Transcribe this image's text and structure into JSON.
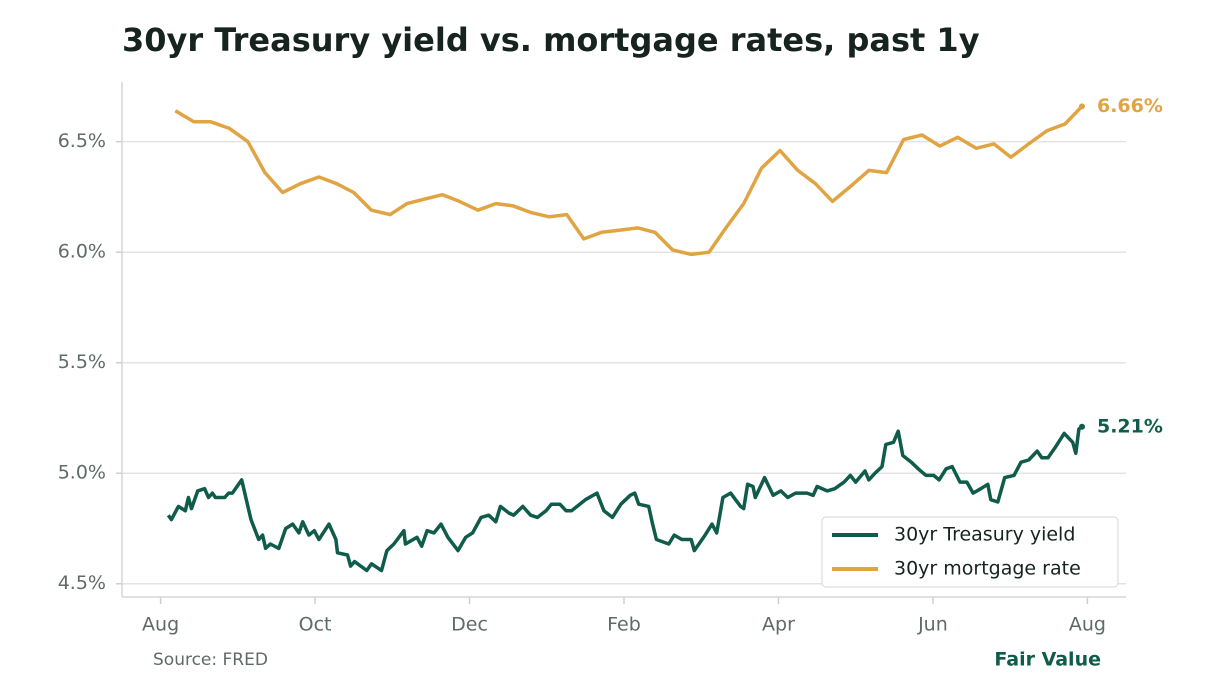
{
  "chart_data": {
    "type": "line",
    "title": "30yr Treasury yield vs. mortgage rates, past 1y",
    "source": "Source: FRED",
    "brand": "Fair Value",
    "xlim": [
      -0.5,
      12.5
    ],
    "xticks": [
      {
        "value": 0,
        "label": "Aug"
      },
      {
        "value": 2,
        "label": "Oct"
      },
      {
        "value": 4,
        "label": "Dec"
      },
      {
        "value": 6,
        "label": "Feb"
      },
      {
        "value": 8,
        "label": "Apr"
      },
      {
        "value": 10,
        "label": "Jun"
      },
      {
        "value": 12,
        "label": "Aug"
      }
    ],
    "ylim": [
      4.44,
      6.77
    ],
    "yticks": [
      {
        "value": 4.5,
        "label": "4.5%"
      },
      {
        "value": 5.0,
        "label": "5.0%"
      },
      {
        "value": 5.5,
        "label": "5.5%"
      },
      {
        "value": 6.0,
        "label": "6.0%"
      },
      {
        "value": 6.5,
        "label": "6.5%"
      }
    ],
    "grid": true,
    "legend": "lower right",
    "series": [
      {
        "name": "30yr Treasury yield",
        "color": "#0f5c4a",
        "end_label": "5.21%",
        "x": [
          0.1,
          0.14,
          0.23,
          0.32,
          0.36,
          0.4,
          0.48,
          0.57,
          0.62,
          0.67,
          0.71,
          0.83,
          0.88,
          0.93,
          1.05,
          1.11,
          1.17,
          1.27,
          1.32,
          1.36,
          1.42,
          1.53,
          1.62,
          1.71,
          1.79,
          1.84,
          1.92,
          1.99,
          2.05,
          2.18,
          2.27,
          2.29,
          2.42,
          2.46,
          2.51,
          2.67,
          2.73,
          2.86,
          2.93,
          3.02,
          3.15,
          3.17,
          3.32,
          3.38,
          3.45,
          3.54,
          3.63,
          3.72,
          3.85,
          3.95,
          4.04,
          4.15,
          4.25,
          4.34,
          4.4,
          4.51,
          4.57,
          4.69,
          4.79,
          4.88,
          4.99,
          5.06,
          5.17,
          5.25,
          5.32,
          5.5,
          5.65,
          5.74,
          5.85,
          5.96,
          6.08,
          6.14,
          6.19,
          6.32,
          6.37,
          6.42,
          6.58,
          6.65,
          6.75,
          6.87,
          6.91,
          7.05,
          7.14,
          7.2,
          7.28,
          7.38,
          7.51,
          7.55,
          7.6,
          7.67,
          7.7,
          7.82,
          7.93,
          8.03,
          8.12,
          8.22,
          8.37,
          8.45,
          8.5,
          8.63,
          8.73,
          8.85,
          8.93,
          9.0,
          9.12,
          9.17,
          9.25,
          9.34,
          9.39,
          9.49,
          9.55,
          9.61,
          9.72,
          9.81,
          9.91,
          10.01,
          10.08,
          10.17,
          10.25,
          10.35,
          10.44,
          10.52,
          10.62,
          10.71,
          10.75,
          10.84,
          10.93,
          11.05,
          11.14,
          11.24,
          11.35,
          11.41,
          11.49,
          11.59,
          11.7,
          11.81,
          11.85,
          11.89,
          11.93
        ],
        "values": [
          4.81,
          4.79,
          4.85,
          4.83,
          4.89,
          4.84,
          4.92,
          4.93,
          4.89,
          4.91,
          4.89,
          4.89,
          4.91,
          4.91,
          4.97,
          4.88,
          4.79,
          4.7,
          4.72,
          4.66,
          4.68,
          4.66,
          4.75,
          4.77,
          4.73,
          4.78,
          4.72,
          4.74,
          4.7,
          4.77,
          4.7,
          4.64,
          4.63,
          4.58,
          4.6,
          4.56,
          4.59,
          4.56,
          4.65,
          4.68,
          4.74,
          4.68,
          4.71,
          4.67,
          4.74,
          4.73,
          4.77,
          4.71,
          4.65,
          4.71,
          4.73,
          4.8,
          4.81,
          4.78,
          4.85,
          4.82,
          4.81,
          4.85,
          4.81,
          4.8,
          4.83,
          4.86,
          4.86,
          4.83,
          4.83,
          4.88,
          4.91,
          4.83,
          4.8,
          4.86,
          4.9,
          4.91,
          4.86,
          4.85,
          4.77,
          4.7,
          4.68,
          4.72,
          4.7,
          4.7,
          4.65,
          4.72,
          4.77,
          4.73,
          4.89,
          4.91,
          4.85,
          4.84,
          4.95,
          4.94,
          4.89,
          4.98,
          4.9,
          4.92,
          4.89,
          4.91,
          4.91,
          4.9,
          4.94,
          4.92,
          4.93,
          4.96,
          4.99,
          4.96,
          5.01,
          4.97,
          5.0,
          5.03,
          5.13,
          5.14,
          5.19,
          5.08,
          5.05,
          5.02,
          4.99,
          4.99,
          4.97,
          5.02,
          5.03,
          4.96,
          4.96,
          4.91,
          4.93,
          4.95,
          4.88,
          4.87,
          4.98,
          4.99,
          5.05,
          5.06,
          5.1,
          5.07,
          5.07,
          5.12,
          5.18,
          5.14,
          5.09,
          5.2,
          5.21
        ]
      },
      {
        "name": "30yr mortgage rate",
        "color": "#e0a443",
        "end_label": "6.66%",
        "x": [
          0.19,
          0.43,
          0.65,
          0.89,
          1.13,
          1.35,
          1.58,
          1.81,
          2.05,
          2.28,
          2.5,
          2.73,
          2.97,
          3.19,
          3.42,
          3.65,
          3.87,
          4.11,
          4.34,
          4.56,
          4.79,
          5.03,
          5.26,
          5.48,
          5.71,
          5.95,
          6.18,
          6.4,
          6.63,
          6.87,
          7.1,
          7.32,
          7.55,
          7.78,
          8.02,
          8.25,
          8.48,
          8.7,
          8.94,
          9.17,
          9.4,
          9.62,
          9.86,
          10.09,
          10.32,
          10.56,
          10.79,
          11.01,
          11.24,
          11.48,
          11.71,
          11.93
        ],
        "values": [
          6.64,
          6.59,
          6.59,
          6.56,
          6.5,
          6.36,
          6.27,
          6.31,
          6.34,
          6.31,
          6.27,
          6.19,
          6.17,
          6.22,
          6.24,
          6.26,
          6.23,
          6.19,
          6.22,
          6.21,
          6.18,
          6.16,
          6.17,
          6.06,
          6.09,
          6.1,
          6.11,
          6.09,
          6.01,
          5.99,
          6.0,
          6.11,
          6.22,
          6.38,
          6.46,
          6.37,
          6.31,
          6.23,
          6.3,
          6.37,
          6.36,
          6.51,
          6.53,
          6.48,
          6.52,
          6.47,
          6.49,
          6.43,
          6.49,
          6.55,
          6.58,
          6.66
        ]
      }
    ]
  }
}
